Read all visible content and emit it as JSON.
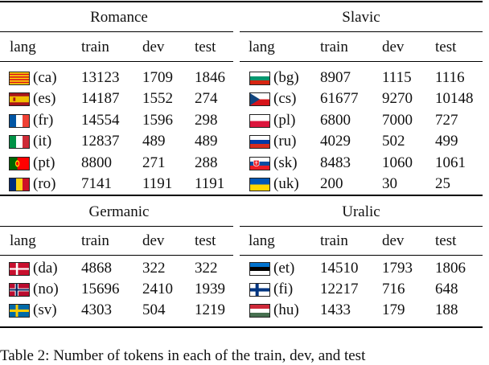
{
  "table": {
    "groups": [
      {
        "title": "Romance",
        "headers": [
          "lang",
          "train",
          "dev",
          "test"
        ],
        "rows": [
          {
            "flag": "catalonia-flag",
            "code": "(ca)",
            "train": "13123",
            "dev": "1709",
            "test": "1846"
          },
          {
            "flag": "spain-flag",
            "code": "(es)",
            "train": "14187",
            "dev": "1552",
            "test": "274"
          },
          {
            "flag": "france-flag",
            "code": "(fr)",
            "train": "14554",
            "dev": "1596",
            "test": "298"
          },
          {
            "flag": "italy-flag",
            "code": "(it)",
            "train": "12837",
            "dev": "489",
            "test": "489"
          },
          {
            "flag": "portugal-flag",
            "code": "(pt)",
            "train": "8800",
            "dev": "271",
            "test": "288"
          },
          {
            "flag": "romania-flag",
            "code": "(ro)",
            "train": "7141",
            "dev": "1191",
            "test": "1191"
          }
        ]
      },
      {
        "title": "Slavic",
        "headers": [
          "lang",
          "train",
          "dev",
          "test"
        ],
        "rows": [
          {
            "flag": "bulgaria-flag",
            "code": "(bg)",
            "train": "8907",
            "dev": "1115",
            "test": "1116"
          },
          {
            "flag": "czechia-flag",
            "code": "(cs)",
            "train": "61677",
            "dev": "9270",
            "test": "10148"
          },
          {
            "flag": "poland-flag",
            "code": "(pl)",
            "train": "6800",
            "dev": "7000",
            "test": "727"
          },
          {
            "flag": "russia-flag",
            "code": "(ru)",
            "train": "4029",
            "dev": "502",
            "test": "499"
          },
          {
            "flag": "slovakia-flag",
            "code": "(sk)",
            "train": "8483",
            "dev": "1060",
            "test": "1061"
          },
          {
            "flag": "ukraine-flag",
            "code": "(uk)",
            "train": "200",
            "dev": "30",
            "test": "25"
          }
        ]
      },
      {
        "title": "Germanic",
        "headers": [
          "lang",
          "train",
          "dev",
          "test"
        ],
        "rows": [
          {
            "flag": "denmark-flag",
            "code": "(da)",
            "train": "4868",
            "dev": "322",
            "test": "322"
          },
          {
            "flag": "norway-flag",
            "code": "(no)",
            "train": "15696",
            "dev": "2410",
            "test": "1939"
          },
          {
            "flag": "sweden-flag",
            "code": "(sv)",
            "train": "4303",
            "dev": "504",
            "test": "1219"
          }
        ]
      },
      {
        "title": "Uralic",
        "headers": [
          "lang",
          "train",
          "dev",
          "test"
        ],
        "rows": [
          {
            "flag": "estonia-flag",
            "code": "(et)",
            "train": "14510",
            "dev": "1793",
            "test": "1806"
          },
          {
            "flag": "finland-flag",
            "code": "(fi)",
            "train": "12217",
            "dev": "716",
            "test": "648"
          },
          {
            "flag": "hungary-flag",
            "code": "(hu)",
            "train": "1433",
            "dev": "179",
            "test": "188"
          }
        ]
      }
    ]
  },
  "caption": "Table 2: Number of tokens in each of the train, dev, and test"
}
